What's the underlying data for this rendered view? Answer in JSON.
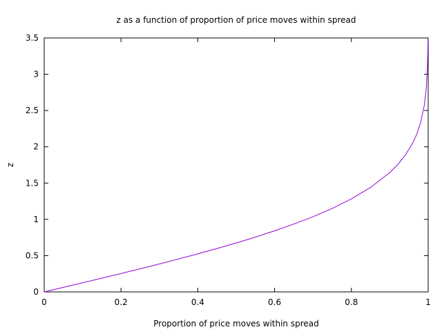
{
  "chart_data": {
    "type": "line",
    "title": "z as a function of proportion of price moves within spread",
    "xlabel": "Proportion of price moves within spread",
    "ylabel": "z",
    "xlim": [
      0,
      1
    ],
    "ylim": [
      0,
      3.5
    ],
    "xticks": [
      0,
      0.2,
      0.4,
      0.6,
      0.8,
      1
    ],
    "xtick_labels": [
      "0",
      "0.2",
      "0.4",
      "0.6",
      "0.8",
      "1"
    ],
    "yticks": [
      0,
      0.5,
      1,
      1.5,
      2,
      2.5,
      3,
      3.5
    ],
    "ytick_labels": [
      "0",
      "0.5",
      "1",
      "1.5",
      "2",
      "2.5",
      "3",
      "3.5"
    ],
    "grid": false,
    "series": [
      {
        "color": "#9400d3",
        "x": [
          0,
          0.05,
          0.1,
          0.15,
          0.2,
          0.25,
          0.3,
          0.35,
          0.4,
          0.45,
          0.5,
          0.55,
          0.6,
          0.65,
          0.7,
          0.75,
          0.8,
          0.85,
          0.9,
          0.92,
          0.94,
          0.96,
          0.97,
          0.98,
          0.99,
          0.995,
          0.998,
          0.999,
          0.9995
        ],
        "y": [
          0,
          0.063,
          0.126,
          0.189,
          0.253,
          0.319,
          0.385,
          0.454,
          0.524,
          0.598,
          0.674,
          0.755,
          0.842,
          0.935,
          1.036,
          1.15,
          1.282,
          1.44,
          1.645,
          1.751,
          1.881,
          2.054,
          2.17,
          2.326,
          2.576,
          2.807,
          3.09,
          3.291,
          3.481
        ]
      }
    ]
  }
}
